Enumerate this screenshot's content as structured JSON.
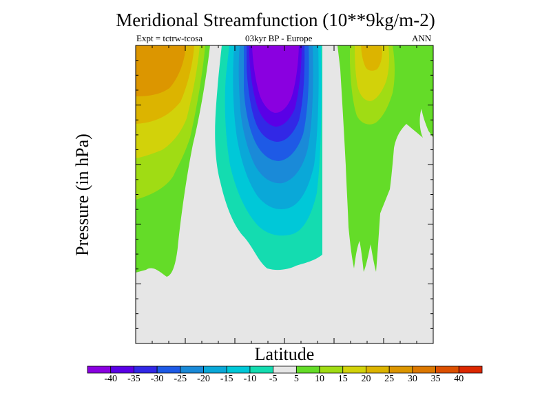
{
  "chart_data": {
    "type": "heatmap",
    "title": "Meridional Streamfunction (10**9kg/m-2)",
    "subtitle_left": "Expt = tctrw-tcosa",
    "subtitle_center": "03kyr BP - Europe",
    "subtitle_right": "ANN",
    "xlabel": "Latitude",
    "ylabel": "Pressure (in hPa)",
    "colorbar": {
      "levels": [
        "-40",
        "-35",
        "-30",
        "-25",
        "-20",
        "-15",
        "-10",
        "-5",
        "5",
        "10",
        "15",
        "20",
        "25",
        "30",
        "35",
        "40"
      ],
      "colors": [
        "#8a00e0",
        "#5a00e6",
        "#3228e6",
        "#1e5ae6",
        "#1a8ad8",
        "#0aa8d8",
        "#00c8d8",
        "#14dcb0",
        "#e6e6e6",
        "#64dc28",
        "#a0dc14",
        "#d2d20a",
        "#dcb400",
        "#dc9600",
        "#dc7800",
        "#dc5000",
        "#dc2800"
      ]
    },
    "regions": [
      {
        "name": "positive-west",
        "max_value": 35
      },
      {
        "name": "negative-center",
        "min_value": -40
      },
      {
        "name": "positive-east",
        "max_value": 20
      }
    ]
  }
}
